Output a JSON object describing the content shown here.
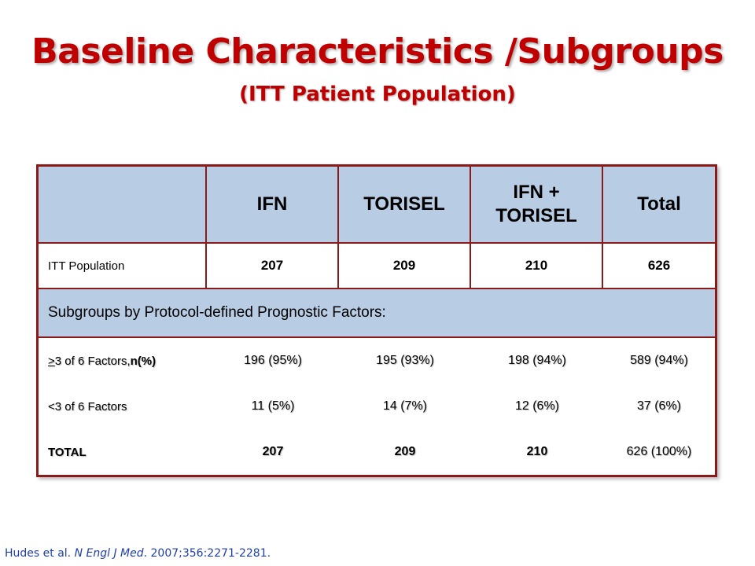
{
  "slide": {
    "title": "Baseline Characteristics /Subgroups",
    "subtitle": "(ITT Patient Population)"
  },
  "table": {
    "headers": [
      "",
      "IFN",
      "TORISEL",
      "IFN + TORISEL",
      "Total"
    ],
    "itt_row": {
      "label": "ITT Population",
      "values": [
        "207",
        "209",
        "210",
        "626"
      ]
    },
    "subgroup_heading": "Subgroups by Protocol-defined Prognostic Factors:",
    "rows": [
      {
        "label_prefix": ">",
        "label_main": "3 of 6 Factors, ",
        "label_suffix": "n(%)",
        "values": [
          "196 (95%)",
          "195 (93%)",
          "198 (94%)",
          "589 (94%)"
        ]
      },
      {
        "label_prefix": "",
        "label_main": "<3 of 6 Factors",
        "label_suffix": "",
        "values": [
          "11 (5%)",
          "14 (7%)",
          "12 (6%)",
          "37 (6%)"
        ]
      },
      {
        "label_prefix": "",
        "label_main": "TOTAL",
        "label_suffix": "",
        "values": [
          "207",
          "209",
          "210",
          "626 (100%)"
        ]
      }
    ]
  },
  "footnote": {
    "authors": "Hudes et al. ",
    "journal": "N Engl J Med",
    "details": ". 2007;356:2271-2281."
  }
}
